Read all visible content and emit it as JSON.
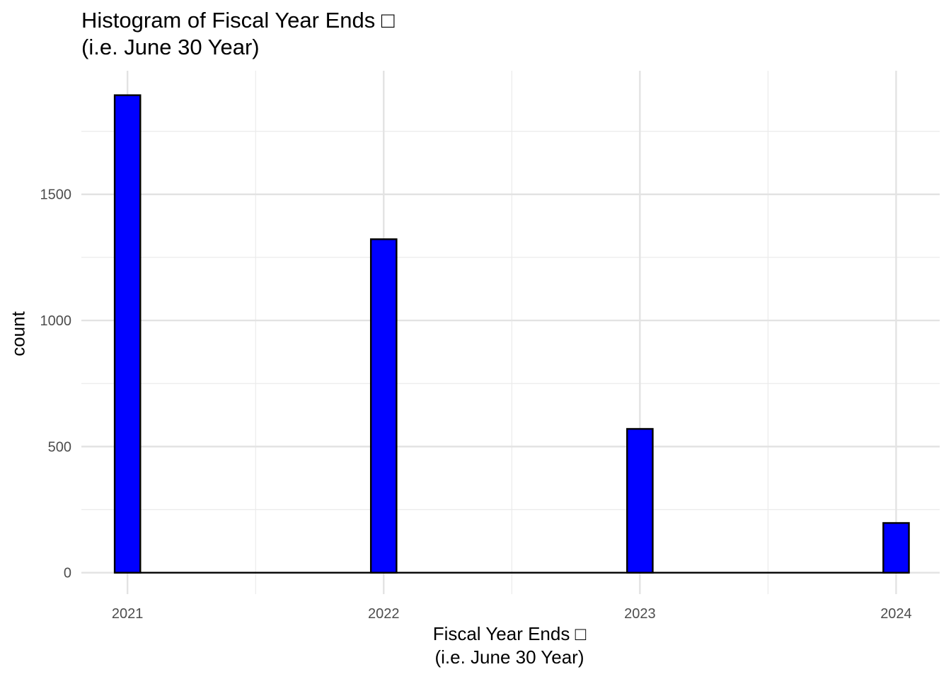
{
  "chart_data": {
    "type": "bar",
    "title": "Histogram of Fiscal Year Ends □\n(i.e. June 30 Year)",
    "xlabel": "Fiscal Year Ends □\n(i.e. June 30 Year)",
    "ylabel": "count",
    "categories": [
      "2021",
      "2022",
      "2023",
      "2024"
    ],
    "x_ticks": [
      2021,
      2022,
      2023,
      2024
    ],
    "y_ticks": [
      0,
      500,
      1000,
      1500
    ],
    "xlim": [
      2020.82,
      2024.17
    ],
    "ylim": [
      -85,
      1990
    ],
    "bars": [
      {
        "x_center": 2021.0,
        "width": 0.1,
        "value": 1893
      },
      {
        "x_center": 2022.0,
        "width": 0.1,
        "value": 1322
      },
      {
        "x_center": 2023.0,
        "width": 0.1,
        "value": 570
      },
      {
        "x_center": 2024.0,
        "width": 0.1,
        "value": 197
      }
    ],
    "bar_fill": "#0000ff",
    "bar_outline": "#000000",
    "grid": true,
    "legend": "none"
  }
}
